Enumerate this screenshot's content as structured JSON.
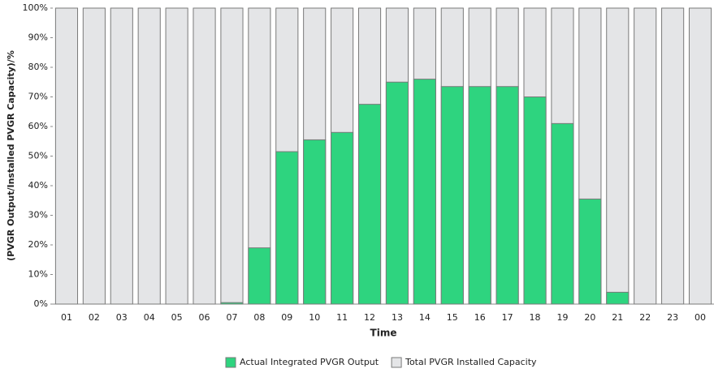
{
  "chart_data": {
    "type": "bar",
    "x_label": "Time",
    "y_label": "(PVGR Output/Installed PVGR Capacity)/%",
    "categories": [
      "01",
      "02",
      "03",
      "04",
      "05",
      "06",
      "07",
      "08",
      "09",
      "10",
      "11",
      "12",
      "13",
      "14",
      "15",
      "16",
      "17",
      "18",
      "19",
      "20",
      "21",
      "22",
      "23",
      "00"
    ],
    "series": [
      {
        "name": "Total PVGR Installed Capacity",
        "color": "#e4e5e7",
        "values": [
          100,
          100,
          100,
          100,
          100,
          100,
          100,
          100,
          100,
          100,
          100,
          100,
          100,
          100,
          100,
          100,
          100,
          100,
          100,
          100,
          100,
          100,
          100,
          100
        ]
      },
      {
        "name": "Actual Integrated PVGR Output",
        "color": "#2ed47f",
        "values": [
          0,
          0,
          0,
          0,
          0,
          0,
          0.5,
          19,
          51.5,
          55.5,
          58,
          67.5,
          75,
          76,
          73.5,
          73.5,
          73.5,
          70,
          61,
          35.5,
          4,
          0,
          0,
          0
        ]
      }
    ],
    "legend_order": [
      1,
      0
    ],
    "legend": "bottom",
    "ylim": [
      0,
      100
    ],
    "yticks": [
      {
        "value": 0,
        "label": "0%"
      },
      {
        "value": 10,
        "label": "10%"
      },
      {
        "value": 20,
        "label": "20%"
      },
      {
        "value": 30,
        "label": "30%"
      },
      {
        "value": 40,
        "label": "40%"
      },
      {
        "value": 50,
        "label": "50%"
      },
      {
        "value": 60,
        "label": "60%"
      },
      {
        "value": 70,
        "label": "70%"
      },
      {
        "value": 80,
        "label": "80%"
      },
      {
        "value": 90,
        "label": "90%"
      },
      {
        "value": 100,
        "label": "100%"
      }
    ]
  }
}
